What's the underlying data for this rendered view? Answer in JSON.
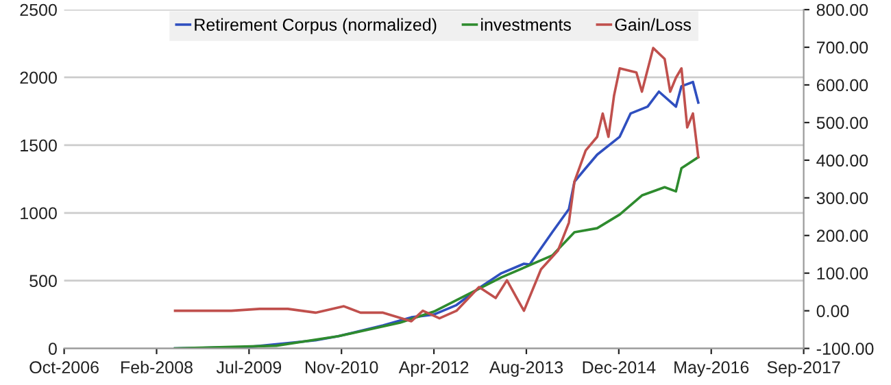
{
  "chart_data": {
    "type": "line",
    "xlim": [
      "2006-10-10",
      "2017-09-22"
    ],
    "xticks": [
      {
        "value": "2006-10-10",
        "label": "Oct-2006"
      },
      {
        "value": "2008-02-22",
        "label": "Feb-2008"
      },
      {
        "value": "2009-07-06",
        "label": "Jul-2009"
      },
      {
        "value": "2010-11-18",
        "label": "Nov-2010"
      },
      {
        "value": "2012-04-01",
        "label": "Apr-2012"
      },
      {
        "value": "2013-08-14",
        "label": "Aug-2013"
      },
      {
        "value": "2014-12-27",
        "label": "Dec-2014"
      },
      {
        "value": "2016-05-10",
        "label": "May-2016"
      },
      {
        "value": "2017-09-22",
        "label": "Sep-2017"
      }
    ],
    "ylim": [
      0,
      2500
    ],
    "yticks": [
      0,
      500,
      1000,
      1500,
      2000,
      2500
    ],
    "y2lim": [
      -100,
      800
    ],
    "y2ticks": [
      {
        "value": -100,
        "label": "-100.00"
      },
      {
        "value": 0,
        "label": "0.00"
      },
      {
        "value": 100,
        "label": "100.00"
      },
      {
        "value": 200,
        "label": "200.00"
      },
      {
        "value": 300,
        "label": "300.00"
      },
      {
        "value": 400,
        "label": "400.00"
      },
      {
        "value": 500,
        "label": "500.00"
      },
      {
        "value": 600,
        "label": "600.00"
      },
      {
        "value": 700,
        "label": "700.00"
      },
      {
        "value": 800,
        "label": "800.00"
      }
    ],
    "grid": "y",
    "legend": "top",
    "marker": "none",
    "line_style": "solid",
    "series": [
      {
        "name": "Retirement Corpus (normalized)",
        "color": "#2f4fbf",
        "x": [
          "2008-06",
          "2009-07",
          "2010-07",
          "2010-11",
          "2011-07",
          "2011-12",
          "2012-04",
          "2012-08",
          "2012-12",
          "2013-04",
          "2013-08",
          "2013-09",
          "2014-01",
          "2014-04",
          "2014-05",
          "2014-07",
          "2014-09",
          "2015-01",
          "2015-03",
          "2015-06",
          "2015-08",
          "2015-11",
          "2015-12",
          "2016-02",
          "2016-03"
        ],
        "values": [
          0,
          10,
          60,
          90,
          170,
          230,
          250,
          320,
          445,
          555,
          625,
          620,
          857,
          1028,
          1230,
          1330,
          1430,
          1562,
          1734,
          1784,
          1895,
          1784,
          1935,
          1966,
          1814
        ]
      },
      {
        "name": "investments",
        "color": "#2e8b2e",
        "x": [
          "2008-06",
          "2009-12",
          "2010-11",
          "2011-10",
          "2012-04",
          "2013-04",
          "2014-01",
          "2014-05",
          "2014-09",
          "2015-01",
          "2015-05",
          "2015-09",
          "2015-11",
          "2015-12",
          "2016-03"
        ],
        "values": [
          0,
          20,
          90,
          190,
          272,
          524,
          686,
          857,
          887,
          988,
          1129,
          1190,
          1159,
          1330,
          1411
        ]
      },
      {
        "name": "Gain/Loss",
        "color": "#c0504d",
        "axis": "y2",
        "x": [
          "2008-06",
          "2009-04",
          "2009-09",
          "2010-02",
          "2010-07",
          "2010-12",
          "2011-03",
          "2011-07",
          "2011-12",
          "2012-02",
          "2012-05",
          "2012-08",
          "2012-12",
          "2013-03",
          "2013-05",
          "2013-07",
          "2013-08",
          "2013-11",
          "2014-02",
          "2014-04",
          "2014-05",
          "2014-07",
          "2014-09",
          "2014-10",
          "2014-11",
          "2014-12",
          "2015-01",
          "2015-04",
          "2015-05",
          "2015-07",
          "2015-09",
          "2015-10",
          "2015-11",
          "2015-12",
          "2016-01",
          "2016-02",
          "2016-03"
        ],
        "values": [
          0,
          0,
          5,
          5,
          -5,
          12,
          -5,
          -5,
          -28,
          0,
          -20,
          0,
          63,
          34,
          81,
          27,
          0,
          110,
          160,
          234,
          343,
          426,
          462,
          524,
          462,
          571,
          644,
          633,
          582,
          698,
          669,
          582,
          619,
          644,
          487,
          524,
          408
        ]
      }
    ]
  }
}
